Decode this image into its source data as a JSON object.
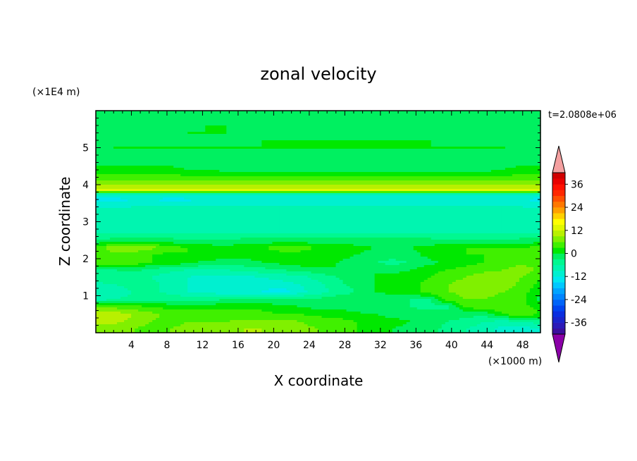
{
  "chart_data": {
    "type": "heatmap",
    "title": "zonal velocity",
    "xlabel": "X coordinate",
    "ylabel": "Z coordinate",
    "x_unit": "(×1000 m)",
    "y_unit": "(×1E4 m)",
    "time_label": "t=2.0808e+06",
    "xlim": [
      0,
      50
    ],
    "ylim": [
      0,
      6
    ],
    "x_ticks": [
      4,
      8,
      12,
      16,
      20,
      24,
      28,
      32,
      36,
      40,
      44,
      48
    ],
    "y_ticks": [
      1,
      2,
      3,
      4,
      5
    ],
    "colorbar": {
      "levels": [
        -42,
        -39,
        -36,
        -33,
        -30,
        -27,
        -24,
        -21,
        -18,
        -15,
        -12,
        -9,
        -6,
        -3,
        0,
        3,
        6,
        9,
        12,
        15,
        18,
        21,
        24,
        27,
        30,
        33,
        36,
        39
      ],
      "colors": [
        "#3b0f9e",
        "#2c1ab8",
        "#1a24cc",
        "#0a2ee0",
        "#0044f0",
        "#0064f8",
        "#0084ff",
        "#00a4ff",
        "#00c8ff",
        "#00e8f0",
        "#00f0d0",
        "#00f5b0",
        "#00f890",
        "#00f060",
        "#00e800",
        "#40f000",
        "#80f000",
        "#b8f000",
        "#e0f800",
        "#ffff00",
        "#ffd000",
        "#ffa000",
        "#ff7800",
        "#ff5000",
        "#ff2800",
        "#ff1000",
        "#e80000",
        "#d00000"
      ],
      "under_color": "#8b00a8",
      "over_color": "#f4a0a0",
      "labels": [
        "-36",
        "-24",
        "-12",
        "0",
        "12",
        "24",
        "36"
      ],
      "label_values": [
        -36,
        -24,
        -12,
        0,
        12,
        24,
        36
      ]
    },
    "field_rows": [
      {
        "z": 0.1,
        "values": [
          6,
          6,
          6,
          5,
          6,
          7,
          7,
          8,
          9,
          9,
          8,
          7,
          6,
          4,
          3,
          1,
          0,
          -1,
          -2,
          -4,
          -6,
          -8,
          -10,
          -11,
          -9
        ]
      },
      {
        "z": 0.3,
        "values": [
          10,
          10,
          8,
          6,
          5,
          6,
          6,
          6,
          7,
          7,
          7,
          6,
          5,
          4,
          3,
          2,
          1,
          0,
          -1,
          -3,
          -4,
          -6,
          -7,
          -6,
          -4
        ]
      },
      {
        "z": 0.5,
        "values": [
          11,
          11,
          9,
          7,
          5,
          4,
          4,
          4,
          4,
          4,
          3,
          3,
          2,
          2,
          1,
          0,
          -1,
          -1,
          -2,
          -2,
          -2,
          -2,
          3,
          5,
          3
        ]
      },
      {
        "z": 0.7,
        "values": [
          6,
          5,
          4,
          3,
          2,
          2,
          2,
          2,
          2,
          2,
          1,
          0,
          -1,
          -1,
          -2,
          -3,
          -3,
          -3,
          -4,
          -4,
          4,
          5,
          5,
          4,
          2
        ]
      },
      {
        "z": 0.9,
        "values": [
          -8,
          -6,
          -5,
          -4,
          -4,
          -4,
          -4,
          -3,
          -2,
          -2,
          -3,
          -3,
          -2,
          -1,
          -1,
          -2,
          -2,
          -3,
          -3,
          4,
          6,
          6,
          5,
          4,
          -1
        ]
      },
      {
        "z": 1.1,
        "values": [
          -9,
          -8,
          -6,
          -5,
          -7,
          -9,
          -10,
          -11,
          -11,
          -12,
          -14,
          -10,
          -8,
          -5,
          -3,
          0,
          1,
          2,
          4,
          6,
          7,
          7,
          6,
          4,
          1
        ]
      },
      {
        "z": 1.3,
        "values": [
          -7,
          -6,
          -5,
          -5,
          -7,
          -9,
          -10,
          -11,
          -11,
          -11,
          -10,
          -9,
          -7,
          -4,
          -2,
          0,
          1,
          2,
          4,
          6,
          7,
          8,
          8,
          5,
          2
        ]
      },
      {
        "z": 1.5,
        "values": [
          -4,
          -4,
          -5,
          -6,
          -8,
          -9,
          -10,
          -10,
          -10,
          -9,
          -8,
          -7,
          -5,
          -3,
          -1,
          0,
          1,
          2,
          3,
          5,
          6,
          8,
          8,
          6,
          3
        ]
      },
      {
        "z": 1.7,
        "values": [
          -3,
          -3,
          -2,
          -4,
          -5,
          -6,
          -6,
          -6,
          -5,
          -4,
          -3,
          -2,
          -1,
          0,
          0,
          0,
          -1,
          0,
          2,
          3,
          4,
          5,
          6,
          8,
          5
        ]
      },
      {
        "z": 1.9,
        "values": [
          6,
          6,
          5,
          3,
          2,
          1,
          -1,
          -2,
          -1,
          0,
          1,
          2,
          1,
          0,
          -1,
          -3,
          -4,
          -3,
          -1,
          1,
          2,
          3,
          4,
          5,
          4
        ]
      },
      {
        "z": 2.1,
        "values": [
          5,
          5,
          4,
          3,
          2,
          3,
          3,
          2,
          1,
          1,
          2,
          2,
          1,
          1,
          0,
          -1,
          -2,
          -1,
          1,
          2,
          3,
          3,
          3,
          4,
          4
        ]
      },
      {
        "z": 2.3,
        "values": [
          4,
          8,
          9,
          7,
          4,
          3,
          2,
          1,
          2,
          3,
          4,
          4,
          3,
          2,
          1,
          0,
          -1,
          0,
          1,
          2,
          3,
          3,
          3,
          3,
          4
        ]
      },
      {
        "z": 2.5,
        "values": [
          -3,
          -2,
          -2,
          -1,
          -2,
          -3,
          -3,
          -3,
          -2,
          -2,
          -2,
          -2,
          -2,
          -2,
          -2,
          -2,
          -2,
          -2,
          -2,
          -3,
          -3,
          -3,
          -3,
          -2,
          -2
        ]
      },
      {
        "z": 2.7,
        "values": [
          -6,
          -6,
          -6,
          -6,
          -6,
          -6,
          -6,
          -6,
          -6,
          -6,
          -6,
          -6,
          -6,
          -6,
          -6,
          -6,
          -6,
          -6,
          -6,
          -6,
          -6,
          -6,
          -6,
          -6,
          -6
        ]
      },
      {
        "z": 2.9,
        "values": [
          -7,
          -7,
          -7,
          -7,
          -7,
          -7,
          -7,
          -7,
          -7,
          -7,
          -7,
          -7,
          -7,
          -7,
          -7,
          -7,
          -7,
          -7,
          -7,
          -7,
          -7,
          -7,
          -7,
          -7,
          -7
        ]
      },
      {
        "z": 3.1,
        "values": [
          -7,
          -7,
          -7,
          -7,
          -7,
          -7,
          -7,
          -7,
          -7,
          -7,
          -7,
          -7,
          -7,
          -7,
          -7,
          -7,
          -7,
          -7,
          -7,
          -7,
          -7,
          -7,
          -7,
          -7,
          -7
        ]
      },
      {
        "z": 3.3,
        "values": [
          -8,
          -8,
          -8,
          -8,
          -8,
          -8,
          -8,
          -8,
          -8,
          -8,
          -8,
          -8,
          -8,
          -8,
          -8,
          -8,
          -8,
          -8,
          -8,
          -8,
          -8,
          -8,
          -8,
          -8,
          -8
        ]
      },
      {
        "z": 3.5,
        "values": [
          -11,
          -11,
          -10,
          -10,
          -10,
          -10,
          -10,
          -10,
          -10,
          -10,
          -10,
          -10,
          -10,
          -10,
          -10,
          -10,
          -10,
          -10,
          -10,
          -10,
          -10,
          -10,
          -10,
          -10,
          -11
        ]
      },
      {
        "z": 3.6,
        "values": [
          -15,
          -14,
          -12,
          -12,
          -14,
          -13,
          -12,
          -12,
          -12,
          -12,
          -12,
          -12,
          -12,
          -12,
          -12,
          -12,
          -12,
          -12,
          -12,
          -12,
          -12,
          -12,
          -12,
          -12,
          -14
        ]
      },
      {
        "z": 3.75,
        "values": [
          -7,
          -7,
          -7,
          -7,
          -7,
          -7,
          -7,
          -7,
          -7,
          -7,
          -7,
          -7,
          -7,
          -7,
          -7,
          -7,
          -7,
          -7,
          -7,
          -7,
          -7,
          -7,
          -7,
          -7,
          -7
        ]
      },
      {
        "z": 3.85,
        "values": [
          13,
          13,
          13,
          13,
          13,
          13,
          13,
          13,
          13,
          13,
          13,
          13,
          13,
          13,
          13,
          13,
          13,
          13,
          13,
          13,
          13,
          13,
          13,
          13,
          13
        ]
      },
      {
        "z": 4.0,
        "values": [
          9,
          9,
          9,
          9,
          9,
          9,
          9,
          9,
          9,
          9,
          9,
          9,
          9,
          9,
          9,
          9,
          9,
          9,
          9,
          9,
          9,
          9,
          9,
          9,
          9
        ]
      },
      {
        "z": 4.2,
        "values": [
          4,
          4,
          4,
          4,
          4,
          4,
          4,
          4,
          4,
          4,
          4,
          4,
          4,
          4,
          4,
          4,
          4,
          4,
          4,
          4,
          4,
          4,
          4,
          4,
          4
        ]
      },
      {
        "z": 4.4,
        "values": [
          2,
          2,
          2,
          2,
          1,
          0,
          0,
          -1,
          -1,
          -1,
          -1,
          -1,
          -1,
          -1,
          -1,
          -1,
          -1,
          -1,
          -1,
          -1,
          -1,
          -1,
          0,
          1,
          1
        ]
      },
      {
        "z": 4.6,
        "values": [
          -1,
          -1,
          -1,
          -1,
          -1,
          -1,
          -1,
          -1,
          -1,
          -1,
          -1,
          -1,
          -1,
          -1,
          -1,
          -1,
          -1,
          -1,
          -1,
          -1,
          -1,
          -1,
          -1,
          -1,
          -1
        ]
      },
      {
        "z": 4.8,
        "values": [
          -2,
          -2,
          -2,
          -2,
          -2,
          -2,
          -2,
          -2,
          -2,
          -2,
          -2,
          -2,
          -2,
          -2,
          -2,
          -2,
          -2,
          -2,
          -2,
          -2,
          -2,
          -2,
          -2,
          -2,
          -2
        ]
      },
      {
        "z": 5.0,
        "values": [
          -3,
          0,
          0,
          0,
          0,
          0,
          0,
          0,
          0,
          0,
          0,
          0,
          0,
          0,
          0,
          0,
          0,
          0,
          0,
          0,
          0,
          0,
          0,
          -1,
          -2
        ]
      },
      {
        "z": 5.2,
        "values": [
          -2,
          -2,
          -2,
          -2,
          -2,
          -2,
          -2,
          -2,
          -2,
          0,
          0,
          0,
          0,
          0,
          0,
          0,
          0,
          0,
          0,
          -2,
          -2,
          -2,
          -2,
          -2,
          -2
        ]
      },
      {
        "z": 5.4,
        "values": [
          -2,
          -2,
          -2,
          -2,
          -2,
          0,
          0,
          0,
          -2,
          -2,
          -2,
          -2,
          -2,
          -2,
          -2,
          -2,
          -2,
          -2,
          -2,
          -2,
          -2,
          -2,
          -2,
          -2,
          -2
        ]
      },
      {
        "z": 5.6,
        "values": [
          -2,
          -2,
          -2,
          -2,
          -2,
          -2,
          0,
          0,
          0,
          0,
          0,
          0,
          0,
          0,
          0,
          -2,
          -2,
          -2,
          -2,
          -2,
          -2,
          -2,
          -2,
          -2,
          -2
        ]
      },
      {
        "z": 5.85,
        "values": [
          -2,
          -2,
          -2,
          -2,
          -2,
          -2,
          -2,
          -2,
          -2,
          -2,
          -2,
          -2,
          -2,
          -2,
          -2,
          -2,
          -2,
          -2,
          -2,
          -2,
          -2,
          -2,
          -2,
          -2,
          -2
        ]
      }
    ]
  }
}
